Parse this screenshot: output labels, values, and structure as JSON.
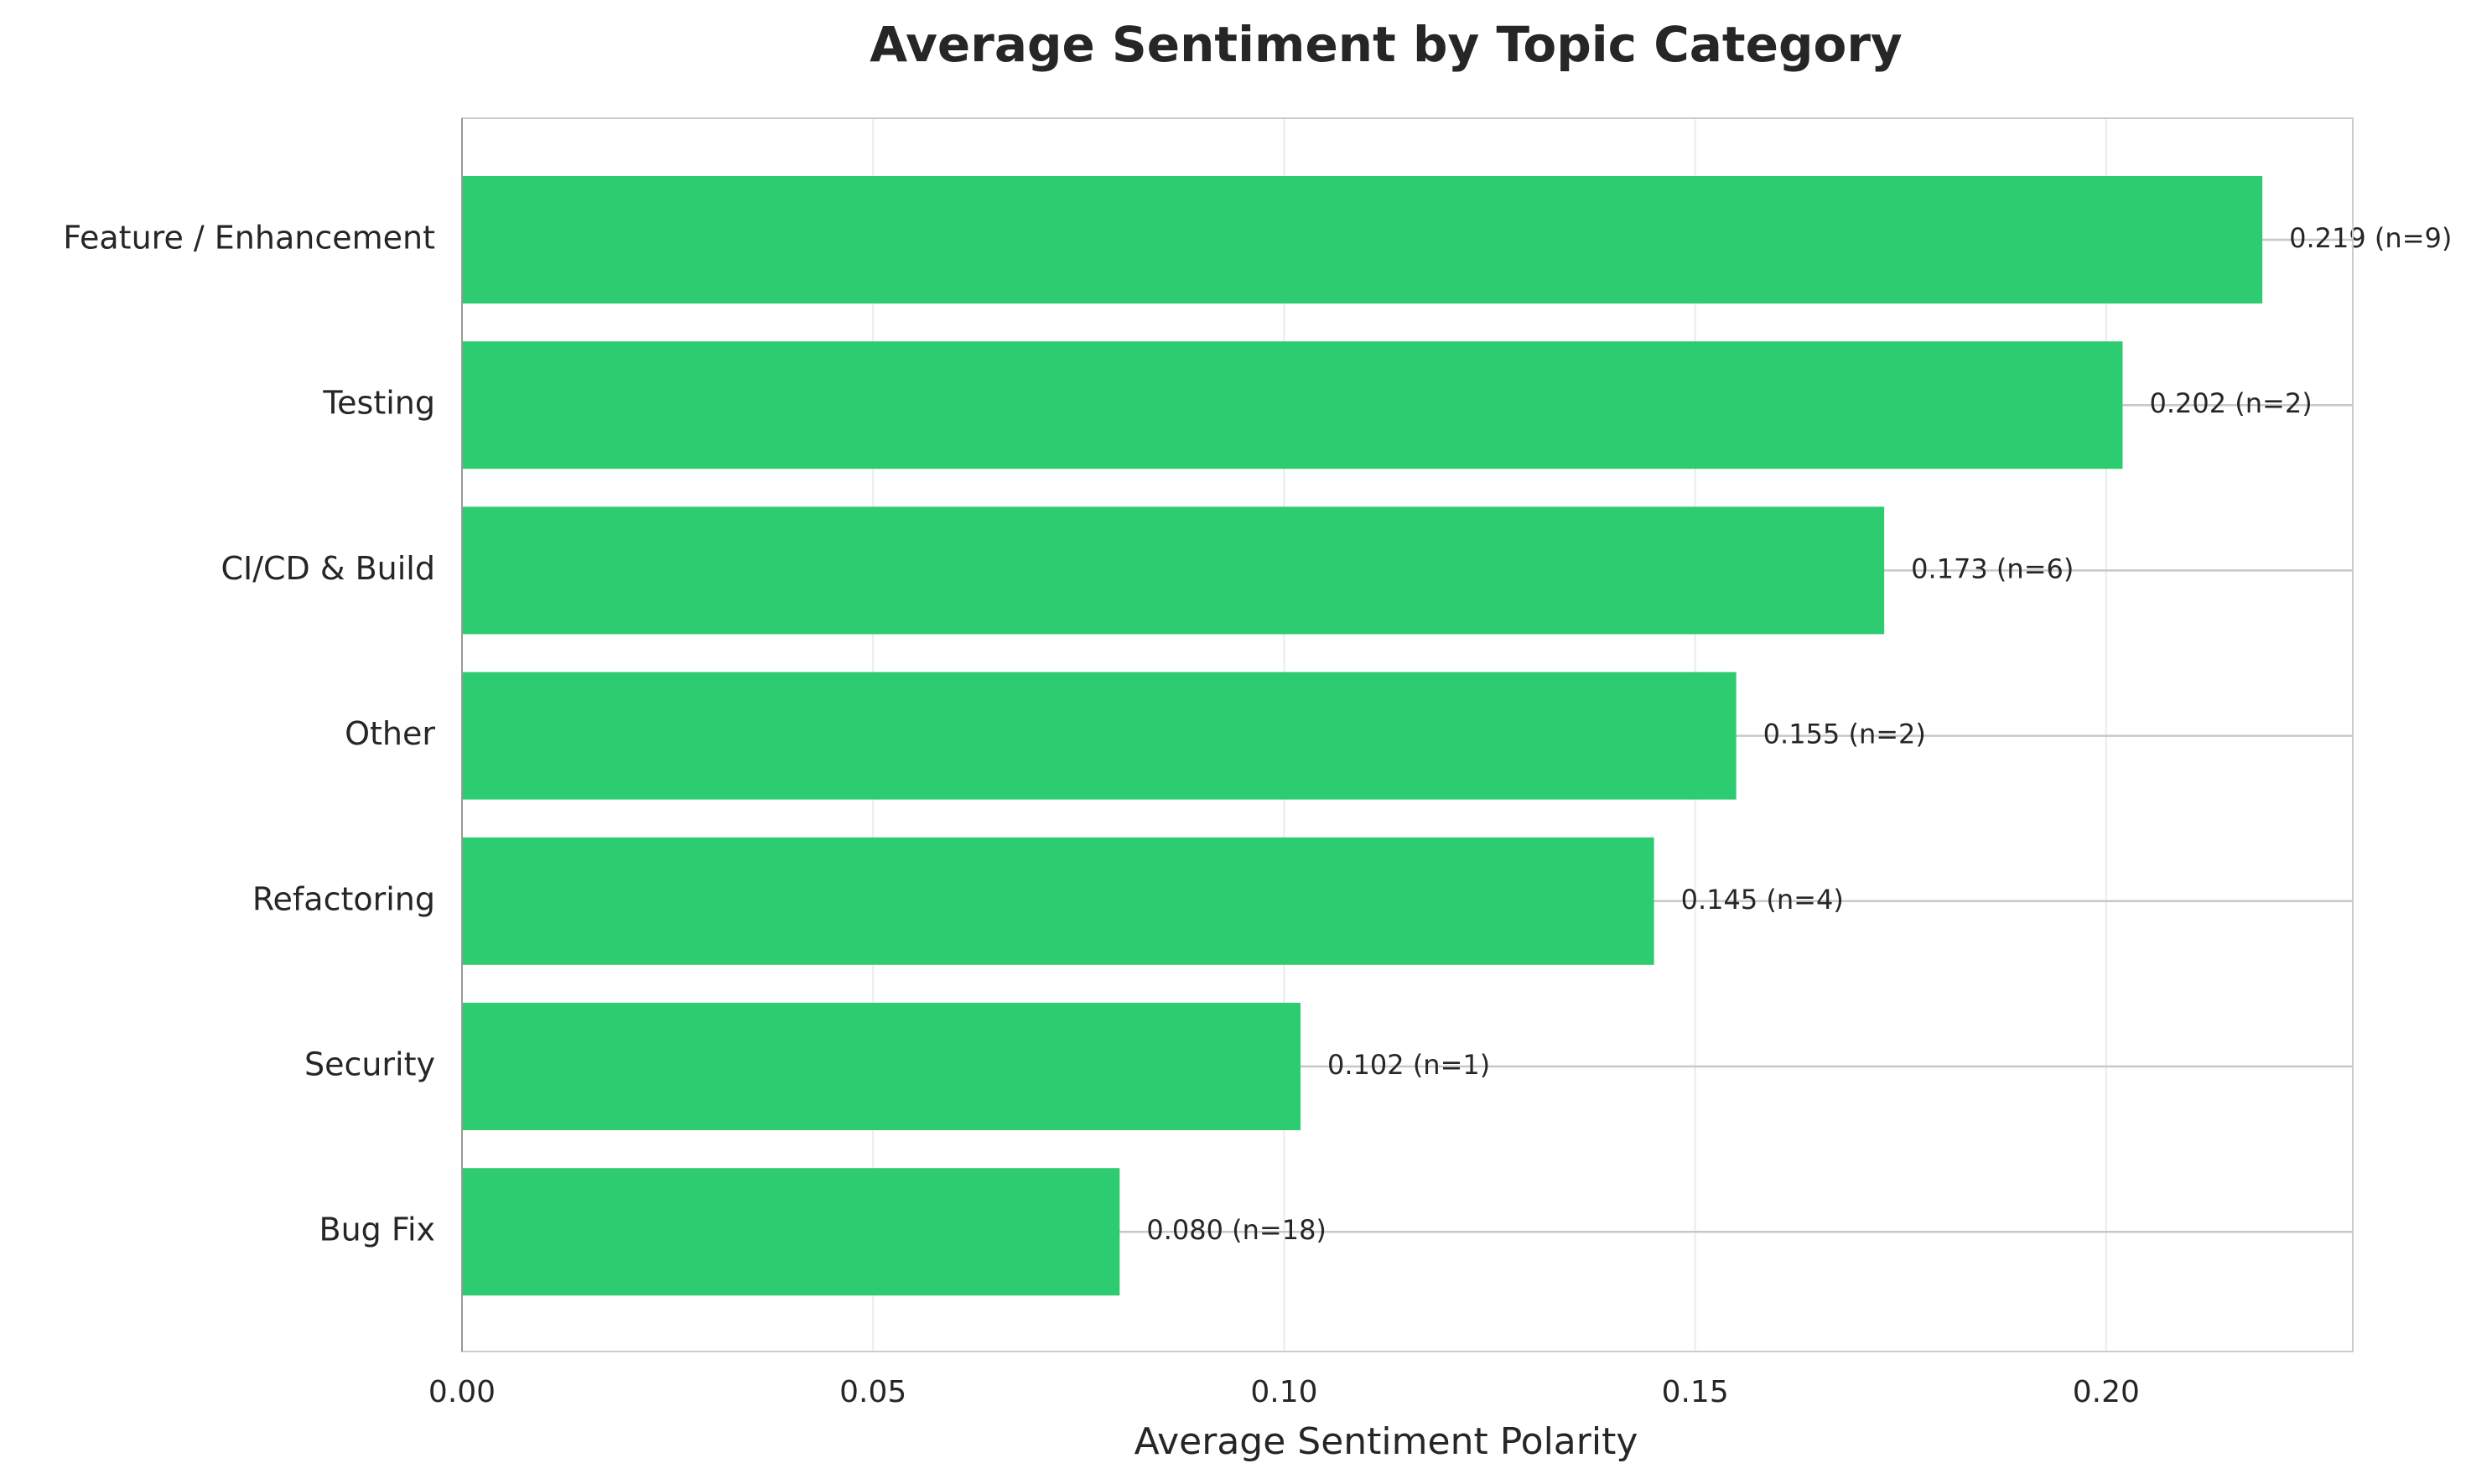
{
  "chart_data": {
    "type": "barh",
    "title": "Average Sentiment by Topic Category",
    "x_label": "Average Sentiment Polarity",
    "categories": [
      "Feature / Enhancement",
      "Testing",
      "CI/CD & Build",
      "Other",
      "Refactoring",
      "Security",
      "Bug Fix"
    ],
    "values": [
      0.219,
      0.202,
      0.173,
      0.155,
      0.145,
      0.102,
      0.08
    ],
    "value_labels": [
      "0.219 (n=9)",
      "0.202 (n=2)",
      "0.173 (n=6)",
      "0.155 (n=2)",
      "0.145 (n=4)",
      "0.102 (n=1)",
      "0.080 (n=18)"
    ],
    "color": "#2ecc71",
    "xlim": [
      0,
      0.23
    ],
    "xticks": [
      {
        "value": 0,
        "label": "0.00"
      },
      {
        "value": 0.05,
        "label": "0.05"
      },
      {
        "value": 0.1,
        "label": "0.10"
      },
      {
        "value": 0.15,
        "label": "0.15"
      },
      {
        "value": 0.2,
        "label": "0.20"
      }
    ],
    "grid": true
  }
}
